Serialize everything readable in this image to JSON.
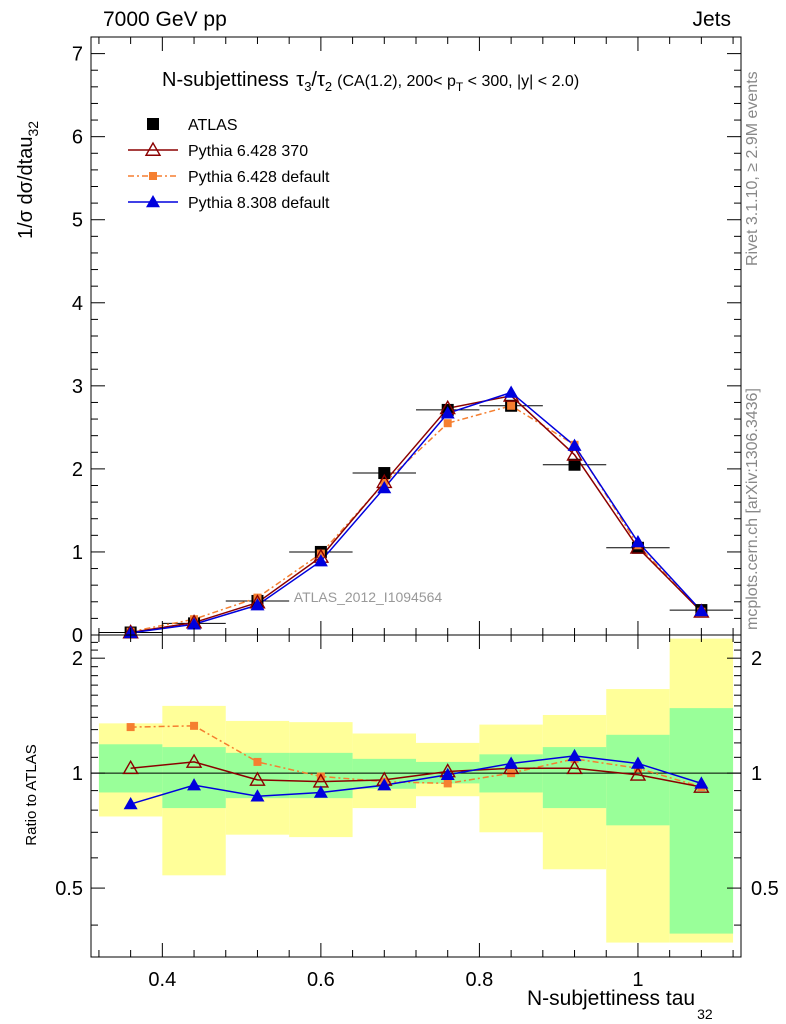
{
  "header": {
    "left": "7000 GeV pp",
    "right": "Jets"
  },
  "side_labels": {
    "rivet": "Rivet 3.1.10, ≥ 2.9M events",
    "mcplots": "mcplots.cern.ch [arXiv:1306.3436]"
  },
  "watermark": "ATLAS_2012_I1094564",
  "chart_data": [
    {
      "type": "line",
      "title_parts": {
        "prefix": "N-subjettiness",
        "tau3": "τ",
        "sub3": "3",
        "slash": "/",
        "tau2": "τ",
        "sub2": "2",
        "cuts_a": "(CA(1.2), 200< p",
        "sub_t": "T",
        "cuts_b": " < 300, |y| < 2.0)"
      },
      "ylabel_main": "1/σ dσ/dtau",
      "ylabel_sub": "32",
      "xlim": [
        0.31,
        1.13
      ],
      "ylim": [
        0,
        7.2
      ],
      "yticks": [
        "0",
        "1",
        "2",
        "3",
        "4",
        "5",
        "6",
        "7"
      ],
      "legend": [
        "ATLAS",
        "Pythia 6.428 370",
        "Pythia 6.428 default",
        "Pythia 8.308 default"
      ],
      "x": [
        0.36,
        0.44,
        0.52,
        0.6,
        0.68,
        0.76,
        0.84,
        0.92,
        1.0,
        1.08
      ],
      "bin_edges": [
        0.32,
        0.4,
        0.48,
        0.56,
        0.64,
        0.72,
        0.8,
        0.88,
        0.96,
        1.04,
        1.12
      ],
      "series": [
        {
          "name": "ATLAS",
          "color": "#000000",
          "marker": "square",
          "values": [
            0.03,
            0.14,
            0.41,
            1.0,
            1.95,
            2.71,
            2.76,
            2.05,
            1.05,
            0.3
          ]
        },
        {
          "name": "Pythia 6.428 370",
          "color": "#8b0000",
          "marker": "open-triangle",
          "values": [
            0.03,
            0.15,
            0.39,
            0.94,
            1.84,
            2.73,
            2.88,
            2.17,
            1.05,
            0.28
          ]
        },
        {
          "name": "Pythia 6.428 default",
          "color": "#f57f30",
          "marker": "small-square",
          "dash": "6,3,2,3",
          "values": [
            0.04,
            0.19,
            0.45,
            0.98,
            1.83,
            2.55,
            2.76,
            2.29,
            1.08,
            0.28
          ]
        },
        {
          "name": "Pythia 8.308 default",
          "color": "#0000dd",
          "marker": "triangle",
          "values": [
            0.025,
            0.13,
            0.36,
            0.89,
            1.77,
            2.67,
            2.92,
            2.28,
            1.12,
            0.29
          ]
        }
      ]
    },
    {
      "type": "line",
      "ylabel": "Ratio to ATLAS",
      "xlabel_main": "N-subjettiness tau",
      "xlabel_sub": "32",
      "ylim": [
        0.33,
        2.3
      ],
      "yticks": [
        "0.5",
        "1",
        "2"
      ],
      "xticks": [
        "0.4",
        "0.6",
        "0.8",
        "1"
      ],
      "x": [
        0.36,
        0.44,
        0.52,
        0.6,
        0.68,
        0.76,
        0.84,
        0.92,
        1.0,
        1.08
      ],
      "bin_edges": [
        0.32,
        0.4,
        0.48,
        0.56,
        0.64,
        0.72,
        0.8,
        0.88,
        0.96,
        1.04,
        1.12
      ],
      "green_band": {
        "low": [
          0.89,
          0.81,
          0.86,
          0.86,
          0.91,
          0.94,
          0.89,
          0.81,
          0.73,
          0.38
        ],
        "high": [
          1.19,
          1.17,
          1.13,
          1.13,
          1.09,
          1.07,
          1.12,
          1.17,
          1.26,
          1.48
        ]
      },
      "yellow_band": {
        "low": [
          0.77,
          0.54,
          0.69,
          0.68,
          0.81,
          0.87,
          0.7,
          0.56,
          0.36,
          0.36
        ],
        "high": [
          1.35,
          1.5,
          1.37,
          1.36,
          1.27,
          1.2,
          1.34,
          1.42,
          1.66,
          2.25
        ]
      },
      "series": [
        {
          "name": "Pythia 6.428 370",
          "color": "#8b0000",
          "marker": "open-triangle",
          "values": [
            1.03,
            1.07,
            0.96,
            0.95,
            0.96,
            1.01,
            1.03,
            1.03,
            0.99,
            0.92
          ]
        },
        {
          "name": "Pythia 6.428 default",
          "color": "#f57f30",
          "marker": "small-square",
          "dash": "6,3,2,3",
          "values": [
            1.32,
            1.33,
            1.07,
            0.98,
            0.95,
            0.94,
            1.0,
            1.09,
            1.03,
            0.92
          ]
        },
        {
          "name": "Pythia 8.308 default",
          "color": "#0000dd",
          "marker": "triangle",
          "values": [
            0.83,
            0.93,
            0.87,
            0.89,
            0.93,
            0.99,
            1.06,
            1.11,
            1.06,
            0.94
          ]
        }
      ]
    }
  ]
}
